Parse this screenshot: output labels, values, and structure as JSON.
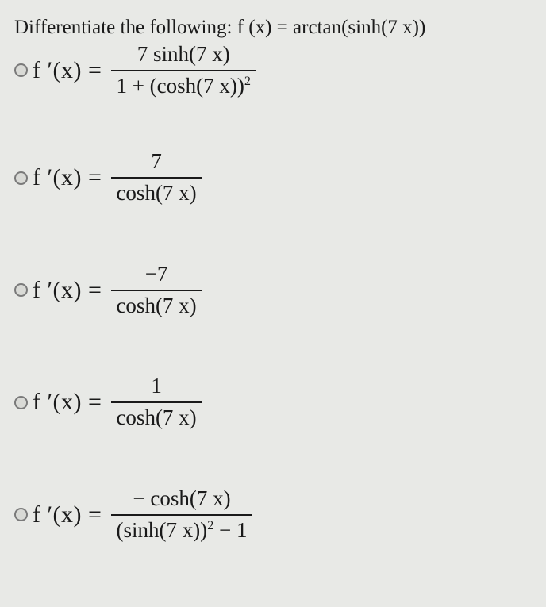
{
  "question_prefix": "Differentiate the following:  ",
  "question_expr": "f (x) = arctan(sinh(7 x))",
  "options": [
    {
      "lhs": "f ′(x) = ",
      "num": "7 sinh(7 x)",
      "den_html": "1 + (cosh(7 x))<sup>2</sup>"
    },
    {
      "lhs": "f ′(x) = ",
      "num": "7",
      "den_html": "cosh(7 x)"
    },
    {
      "lhs": "f ′(x) = ",
      "num": "−7",
      "den_html": "cosh(7 x)"
    },
    {
      "lhs": "f ′(x) = ",
      "num": "1",
      "den_html": "cosh(7 x)"
    },
    {
      "lhs": "f ′(x) = ",
      "num": "− cosh(7 x)",
      "den_html": "(sinh(7 x))<sup>2</sup> − 1"
    }
  ],
  "colors": {
    "background": "#e8e9e6",
    "text": "#1a1a1a",
    "radio_border": "#7a7a7a",
    "radio_fill": "#d9dad6"
  },
  "fontsize": {
    "question": 25,
    "lhs": 30,
    "fraction": 27
  }
}
